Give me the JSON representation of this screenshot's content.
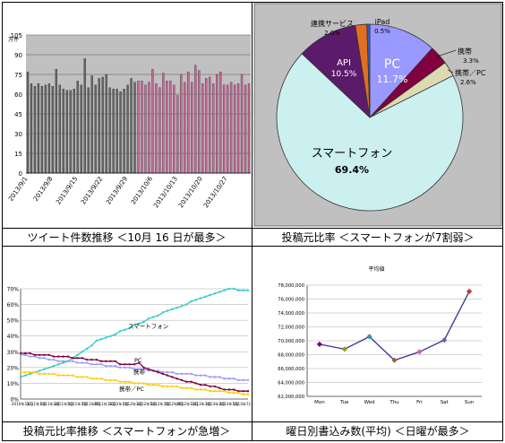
{
  "captions": {
    "c1": "ツイート件数推移 ＜10月 16 日が最多＞",
    "c2": "投稿元比率 ＜スマートフォンが7割弱＞",
    "c3": "投稿元比率推移 ＜スマートフォンが急増＞",
    "c4": "曜日別書込み数(平均) ＜日曜が最多＞"
  },
  "chart_data": [
    {
      "type": "bar",
      "ylabel": "万件",
      "ylim": [
        0,
        105
      ],
      "yticks": [
        0,
        15,
        30,
        45,
        60,
        75,
        90,
        105
      ],
      "x_tick_labels": [
        {
          "index": 0,
          "label": "2013/9/1"
        },
        {
          "index": 7,
          "label": "2013/9/8"
        },
        {
          "index": 14,
          "label": "2013/9/15"
        },
        {
          "index": 21,
          "label": "2013/9/22"
        },
        {
          "index": 28,
          "label": "2013/9/29"
        },
        {
          "index": 35,
          "label": "2013/10/6"
        },
        {
          "index": 42,
          "label": "2013/10/13"
        },
        {
          "index": 49,
          "label": "2013/10/20"
        },
        {
          "index": 56,
          "label": "2013/10/27"
        }
      ],
      "series": [
        {
          "color": "#666666",
          "values": [
            77,
            68,
            66,
            68,
            66,
            67,
            68,
            66,
            79,
            67,
            64,
            63,
            63,
            64,
            70,
            67,
            87,
            65,
            74,
            67,
            72,
            73,
            75,
            65,
            64,
            64,
            62,
            64,
            67,
            72,
            69
          ]
        },
        {
          "color": "#cc6699",
          "values": [
            70,
            70,
            67,
            69,
            79,
            68,
            65,
            76,
            70,
            70,
            67,
            59,
            75,
            69,
            77,
            69,
            82,
            78,
            68,
            72,
            73,
            68,
            75,
            77,
            67,
            67,
            69,
            67,
            68,
            75,
            67,
            68
          ]
        }
      ],
      "grid": true
    },
    {
      "type": "pie",
      "slices": [
        {
          "label": "PC",
          "value": 11.7,
          "text": "11.7%",
          "color": "#9999ff"
        },
        {
          "label": "携帯",
          "value": 3.3,
          "text": "3.3%",
          "color": "#800040"
        },
        {
          "label": "携帯／PC",
          "value": 2.6,
          "text": "2.6%",
          "color": "#dddab0"
        },
        {
          "label": "スマートフォン",
          "value": 69.4,
          "text": "69.4%",
          "color": "#ccf0f0"
        },
        {
          "label": "API",
          "value": 10.5,
          "text": "10.5%",
          "color": "#5c1a6a"
        },
        {
          "label": "連携サービス",
          "value": 2.0,
          "text": "2.0%",
          "color": "#e07020"
        },
        {
          "label": "iPad",
          "value": 0.5,
          "text": "0.5%",
          "color": "#3060c0"
        }
      ]
    },
    {
      "type": "line",
      "ylim": [
        0,
        70
      ],
      "yticks": [
        "0%",
        "10%",
        "20%",
        "30%",
        "40%",
        "50%",
        "60%",
        "70%"
      ],
      "x_tick_labels": [
        "2010年11月",
        "2011年1月",
        "2011年3月",
        "2011年5月",
        "2011年7月",
        "2011年9月",
        "2011年11月",
        "2012年1月",
        "2012年3月",
        "2012年5月",
        "2012年7月",
        "2012年9月",
        "2012年11月",
        "2013年1月",
        "2013年3月",
        "2013年5月",
        "2013年7月"
      ],
      "series": [
        {
          "name": "スマートフォン",
          "color": "#33cccc",
          "values": [
            14,
            15,
            16,
            17,
            18,
            19,
            20,
            21,
            22,
            23,
            24,
            26,
            28,
            30,
            32,
            34,
            37,
            38,
            39,
            40,
            41,
            43,
            44,
            45,
            47,
            48,
            49,
            51,
            52,
            53,
            55,
            56,
            57,
            58,
            59,
            60,
            62,
            63,
            64,
            65,
            66,
            67,
            68,
            69,
            70,
            70,
            69,
            69,
            69
          ]
        },
        {
          "name": "PC",
          "color": "#9999ff",
          "values": [
            28,
            28,
            27,
            27,
            26,
            26,
            25,
            25,
            24,
            24,
            24,
            24,
            23,
            23,
            23,
            22,
            22,
            22,
            21,
            21,
            21,
            20,
            20,
            20,
            19,
            19,
            19,
            18,
            18,
            18,
            17,
            17,
            17,
            16,
            16,
            16,
            16,
            15,
            15,
            15,
            14,
            14,
            14,
            13,
            13,
            13,
            12,
            12,
            12
          ]
        },
        {
          "name": "携帯",
          "color": "#800040",
          "values": [
            29,
            29,
            29,
            28,
            28,
            28,
            28,
            27,
            27,
            27,
            27,
            26,
            26,
            26,
            25,
            25,
            25,
            24,
            24,
            24,
            24,
            22,
            22,
            22,
            22,
            23,
            20,
            19,
            18,
            17,
            16,
            15,
            14,
            13,
            12,
            11,
            11,
            10,
            9,
            9,
            8,
            8,
            7,
            6,
            6,
            6,
            5,
            5,
            5
          ]
        },
        {
          "name": "携帯／PC",
          "color": "#ffcc00",
          "values": [
            17,
            17,
            17,
            17,
            16,
            16,
            16,
            16,
            15,
            15,
            15,
            15,
            14,
            14,
            14,
            13,
            13,
            13,
            12,
            12,
            12,
            11,
            11,
            11,
            10,
            10,
            10,
            9,
            9,
            9,
            8,
            8,
            8,
            8,
            7,
            7,
            7,
            6,
            6,
            6,
            5,
            5,
            5,
            5,
            4,
            4,
            4,
            3,
            3
          ]
        }
      ],
      "grid": true
    },
    {
      "type": "line",
      "title": "平均値",
      "categories": [
        "Mon",
        "Tue",
        "Wed",
        "Thu",
        "Fri",
        "Sat",
        "Sun"
      ],
      "values": [
        69500000,
        68800000,
        70600000,
        67200000,
        68400000,
        70100000,
        77100000
      ],
      "point_colors": [
        "#800080",
        "#999900",
        "#339999",
        "#996633",
        "#cc6699",
        "#666699",
        "#cc3333"
      ],
      "line_color": "#333399",
      "ylim": [
        62000000,
        78000000
      ],
      "yticks": [
        "62,000,000",
        "64,000,000",
        "66,000,000",
        "68,000,000",
        "70,000,000",
        "72,000,000",
        "74,000,000",
        "76,000,000",
        "78,000,000"
      ],
      "grid": true
    }
  ]
}
